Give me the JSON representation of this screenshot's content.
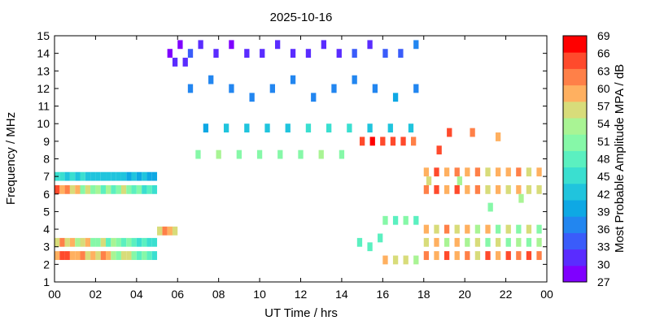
{
  "chart_data": {
    "type": "heatmap",
    "title": "2025-10-16",
    "xlabel": "UT Time / hrs",
    "ylabel": "Frequency / MHz",
    "colorbar_label": "Most Probable Amplitude MPA / dB",
    "xlim": [
      0,
      24
    ],
    "ylim": [
      1,
      15
    ],
    "x_ticks": [
      "00",
      "02",
      "04",
      "06",
      "08",
      "10",
      "12",
      "14",
      "16",
      "18",
      "20",
      "22",
      "00"
    ],
    "y_ticks": [
      "1",
      "2",
      "3",
      "4",
      "5",
      "6",
      "7",
      "8",
      "9",
      "10",
      "11",
      "12",
      "13",
      "14",
      "15"
    ],
    "colorbar_ticks": [
      "27",
      "30",
      "33",
      "36",
      "39",
      "42",
      "45",
      "48",
      "51",
      "54",
      "57",
      "60",
      "63",
      "66",
      "69"
    ],
    "colorbar_range": [
      27,
      69
    ],
    "colormap": [
      "#7f00ff",
      "#5a2cff",
      "#3a5cfa",
      "#2286f0",
      "#0ea8e4",
      "#20c4dd",
      "#3adfd0",
      "#5bf0c0",
      "#86f8a8",
      "#a9f494",
      "#d8dc7a",
      "#ffb060",
      "#ff8048",
      "#ff4a2c",
      "#ff0000"
    ],
    "grid": false,
    "cells": [
      {
        "t": 0.125,
        "f": 2.5,
        "db": 60
      },
      {
        "t": 0.375,
        "f": 2.5,
        "db": 64
      },
      {
        "t": 0.625,
        "f": 2.5,
        "db": 66
      },
      {
        "t": 0.875,
        "f": 2.5,
        "db": 60
      },
      {
        "t": 1.125,
        "f": 2.5,
        "db": 58
      },
      {
        "t": 1.375,
        "f": 2.5,
        "db": 62
      },
      {
        "t": 1.625,
        "f": 2.5,
        "db": 57
      },
      {
        "t": 1.875,
        "f": 2.5,
        "db": 60
      },
      {
        "t": 2.125,
        "f": 2.5,
        "db": 55
      },
      {
        "t": 2.375,
        "f": 2.5,
        "db": 61
      },
      {
        "t": 2.625,
        "f": 2.5,
        "db": 58
      },
      {
        "t": 2.875,
        "f": 2.5,
        "db": 54
      },
      {
        "t": 3.125,
        "f": 2.5,
        "db": 52
      },
      {
        "t": 3.375,
        "f": 2.5,
        "db": 57
      },
      {
        "t": 3.625,
        "f": 2.5,
        "db": 56
      },
      {
        "t": 3.875,
        "f": 2.5,
        "db": 50
      },
      {
        "t": 4.125,
        "f": 2.5,
        "db": 49
      },
      {
        "t": 4.375,
        "f": 2.5,
        "db": 52
      },
      {
        "t": 4.625,
        "f": 2.5,
        "db": 48
      },
      {
        "t": 4.875,
        "f": 2.5,
        "db": 46
      },
      {
        "t": 0.125,
        "f": 3.25,
        "db": 57
      },
      {
        "t": 0.375,
        "f": 3.25,
        "db": 62
      },
      {
        "t": 0.625,
        "f": 3.25,
        "db": 55
      },
      {
        "t": 0.875,
        "f": 3.25,
        "db": 58
      },
      {
        "t": 1.125,
        "f": 3.25,
        "db": 53
      },
      {
        "t": 1.375,
        "f": 3.25,
        "db": 56
      },
      {
        "t": 1.625,
        "f": 3.25,
        "db": 60
      },
      {
        "t": 1.875,
        "f": 3.25,
        "db": 52
      },
      {
        "t": 2.125,
        "f": 3.25,
        "db": 51
      },
      {
        "t": 2.375,
        "f": 3.25,
        "db": 55
      },
      {
        "t": 2.625,
        "f": 3.25,
        "db": 49
      },
      {
        "t": 2.875,
        "f": 3.25,
        "db": 53
      },
      {
        "t": 3.125,
        "f": 3.25,
        "db": 50
      },
      {
        "t": 3.375,
        "f": 3.25,
        "db": 48
      },
      {
        "t": 3.625,
        "f": 3.25,
        "db": 52
      },
      {
        "t": 3.875,
        "f": 3.25,
        "db": 47
      },
      {
        "t": 4.125,
        "f": 3.25,
        "db": 45
      },
      {
        "t": 4.375,
        "f": 3.25,
        "db": 49
      },
      {
        "t": 4.625,
        "f": 3.25,
        "db": 46
      },
      {
        "t": 4.875,
        "f": 3.25,
        "db": 44
      },
      {
        "t": 0.125,
        "f": 6.25,
        "db": 64
      },
      {
        "t": 0.375,
        "f": 6.25,
        "db": 58
      },
      {
        "t": 0.625,
        "f": 6.25,
        "db": 62
      },
      {
        "t": 0.875,
        "f": 6.25,
        "db": 55
      },
      {
        "t": 1.125,
        "f": 6.25,
        "db": 60
      },
      {
        "t": 1.375,
        "f": 6.25,
        "db": 52
      },
      {
        "t": 1.625,
        "f": 6.25,
        "db": 56
      },
      {
        "t": 1.875,
        "f": 6.25,
        "db": 50
      },
      {
        "t": 2.125,
        "f": 6.25,
        "db": 54
      },
      {
        "t": 2.375,
        "f": 6.25,
        "db": 49
      },
      {
        "t": 2.625,
        "f": 6.25,
        "db": 53
      },
      {
        "t": 2.875,
        "f": 6.25,
        "db": 48
      },
      {
        "t": 3.125,
        "f": 6.25,
        "db": 51
      },
      {
        "t": 3.375,
        "f": 6.25,
        "db": 56
      },
      {
        "t": 3.625,
        "f": 6.25,
        "db": 50
      },
      {
        "t": 3.875,
        "f": 6.25,
        "db": 47
      },
      {
        "t": 4.125,
        "f": 6.25,
        "db": 52
      },
      {
        "t": 4.375,
        "f": 6.25,
        "db": 45
      },
      {
        "t": 4.625,
        "f": 6.25,
        "db": 48
      },
      {
        "t": 4.875,
        "f": 6.25,
        "db": 44
      },
      {
        "t": 0.125,
        "f": 7.0,
        "db": 45
      },
      {
        "t": 0.375,
        "f": 7.0,
        "db": 44
      },
      {
        "t": 0.625,
        "f": 7.0,
        "db": 43
      },
      {
        "t": 0.875,
        "f": 7.0,
        "db": 45
      },
      {
        "t": 1.125,
        "f": 7.0,
        "db": 42
      },
      {
        "t": 1.375,
        "f": 7.0,
        "db": 44
      },
      {
        "t": 1.625,
        "f": 7.0,
        "db": 42
      },
      {
        "t": 1.875,
        "f": 7.0,
        "db": 43
      },
      {
        "t": 2.125,
        "f": 7.0,
        "db": 42
      },
      {
        "t": 2.375,
        "f": 7.0,
        "db": 41
      },
      {
        "t": 2.625,
        "f": 7.0,
        "db": 43
      },
      {
        "t": 2.875,
        "f": 7.0,
        "db": 42
      },
      {
        "t": 3.125,
        "f": 7.0,
        "db": 41
      },
      {
        "t": 3.375,
        "f": 7.0,
        "db": 42
      },
      {
        "t": 3.625,
        "f": 7.0,
        "db": 40
      },
      {
        "t": 3.875,
        "f": 7.0,
        "db": 41
      },
      {
        "t": 4.125,
        "f": 7.0,
        "db": 40
      },
      {
        "t": 4.375,
        "f": 7.0,
        "db": 41
      },
      {
        "t": 4.625,
        "f": 7.0,
        "db": 39
      },
      {
        "t": 4.875,
        "f": 7.0,
        "db": 40
      },
      {
        "t": 5.375,
        "f": 3.9,
        "db": 62
      },
      {
        "t": 5.625,
        "f": 3.9,
        "db": 60
      },
      {
        "t": 5.875,
        "f": 3.9,
        "db": 57
      },
      {
        "t": 5.125,
        "f": 3.9,
        "db": 55
      },
      {
        "t": 6.625,
        "f": 14.0,
        "db": 33
      },
      {
        "t": 7.125,
        "f": 14.5,
        "db": 30
      },
      {
        "t": 7.875,
        "f": 14.0,
        "db": 31
      },
      {
        "t": 8.625,
        "f": 14.5,
        "db": 29
      },
      {
        "t": 9.375,
        "f": 14.0,
        "db": 30
      },
      {
        "t": 10.125,
        "f": 14.0,
        "db": 31
      },
      {
        "t": 10.875,
        "f": 14.5,
        "db": 30
      },
      {
        "t": 11.625,
        "f": 14.0,
        "db": 32
      },
      {
        "t": 12.375,
        "f": 14.0,
        "db": 31
      },
      {
        "t": 13.125,
        "f": 14.5,
        "db": 30
      },
      {
        "t": 13.875,
        "f": 14.0,
        "db": 32
      },
      {
        "t": 14.625,
        "f": 14.0,
        "db": 33
      },
      {
        "t": 15.375,
        "f": 14.5,
        "db": 32
      },
      {
        "t": 16.125,
        "f": 14.0,
        "db": 34
      },
      {
        "t": 16.875,
        "f": 14.0,
        "db": 35
      },
      {
        "t": 17.625,
        "f": 14.5,
        "db": 36
      },
      {
        "t": 5.625,
        "f": 14.0,
        "db": 28
      },
      {
        "t": 5.875,
        "f": 13.5,
        "db": 31
      },
      {
        "t": 6.125,
        "f": 14.5,
        "db": 29
      },
      {
        "t": 6.375,
        "f": 13.5,
        "db": 32
      },
      {
        "t": 6.625,
        "f": 12.0,
        "db": 37
      },
      {
        "t": 7.625,
        "f": 12.5,
        "db": 37
      },
      {
        "t": 8.625,
        "f": 12.0,
        "db": 36
      },
      {
        "t": 9.625,
        "f": 11.5,
        "db": 38
      },
      {
        "t": 10.625,
        "f": 12.0,
        "db": 37
      },
      {
        "t": 11.625,
        "f": 12.5,
        "db": 36
      },
      {
        "t": 12.625,
        "f": 11.5,
        "db": 38
      },
      {
        "t": 13.625,
        "f": 12.0,
        "db": 37
      },
      {
        "t": 14.625,
        "f": 12.5,
        "db": 36
      },
      {
        "t": 15.625,
        "f": 12.0,
        "db": 38
      },
      {
        "t": 16.625,
        "f": 11.5,
        "db": 39
      },
      {
        "t": 17.625,
        "f": 12.0,
        "db": 38
      },
      {
        "t": 7.375,
        "f": 9.75,
        "db": 40
      },
      {
        "t": 8.375,
        "f": 9.75,
        "db": 41
      },
      {
        "t": 9.375,
        "f": 9.75,
        "db": 41
      },
      {
        "t": 10.375,
        "f": 9.75,
        "db": 42
      },
      {
        "t": 11.375,
        "f": 9.75,
        "db": 43
      },
      {
        "t": 12.375,
        "f": 9.75,
        "db": 44
      },
      {
        "t": 13.375,
        "f": 9.75,
        "db": 45
      },
      {
        "t": 14.375,
        "f": 9.75,
        "db": 44
      },
      {
        "t": 15.375,
        "f": 9.75,
        "db": 43
      },
      {
        "t": 16.375,
        "f": 9.75,
        "db": 42
      },
      {
        "t": 17.375,
        "f": 9.75,
        "db": 42
      },
      {
        "t": 7.0,
        "f": 8.25,
        "db": 52
      },
      {
        "t": 8.0,
        "f": 8.25,
        "db": 53
      },
      {
        "t": 9.0,
        "f": 8.25,
        "db": 51
      },
      {
        "t": 10.0,
        "f": 8.25,
        "db": 50
      },
      {
        "t": 11.0,
        "f": 8.25,
        "db": 52
      },
      {
        "t": 12.0,
        "f": 8.25,
        "db": 51
      },
      {
        "t": 13.0,
        "f": 8.25,
        "db": 53
      },
      {
        "t": 14.0,
        "f": 8.25,
        "db": 52
      },
      {
        "t": 15.0,
        "f": 9.0,
        "db": 66
      },
      {
        "t": 15.5,
        "f": 9.0,
        "db": 67
      },
      {
        "t": 16.0,
        "f": 9.0,
        "db": 65
      },
      {
        "t": 16.5,
        "f": 9.0,
        "db": 66
      },
      {
        "t": 17.0,
        "f": 9.0,
        "db": 64
      },
      {
        "t": 17.5,
        "f": 9.0,
        "db": 63
      },
      {
        "t": 18.125,
        "f": 7.25,
        "db": 60
      },
      {
        "t": 18.625,
        "f": 7.25,
        "db": 66
      },
      {
        "t": 19.125,
        "f": 7.25,
        "db": 60
      },
      {
        "t": 19.625,
        "f": 7.25,
        "db": 62
      },
      {
        "t": 20.125,
        "f": 7.25,
        "db": 58
      },
      {
        "t": 20.625,
        "f": 7.25,
        "db": 61
      },
      {
        "t": 21.125,
        "f": 7.25,
        "db": 57
      },
      {
        "t": 21.625,
        "f": 7.25,
        "db": 60
      },
      {
        "t": 22.125,
        "f": 7.25,
        "db": 59
      },
      {
        "t": 22.625,
        "f": 7.25,
        "db": 62
      },
      {
        "t": 23.125,
        "f": 7.25,
        "db": 56
      },
      {
        "t": 23.625,
        "f": 7.25,
        "db": 58
      },
      {
        "t": 18.125,
        "f": 6.25,
        "db": 62
      },
      {
        "t": 18.625,
        "f": 6.25,
        "db": 64
      },
      {
        "t": 19.125,
        "f": 6.25,
        "db": 60
      },
      {
        "t": 19.625,
        "f": 6.25,
        "db": 65
      },
      {
        "t": 20.125,
        "f": 6.25,
        "db": 58
      },
      {
        "t": 20.625,
        "f": 6.25,
        "db": 63
      },
      {
        "t": 21.125,
        "f": 6.25,
        "db": 57
      },
      {
        "t": 21.625,
        "f": 6.25,
        "db": 60
      },
      {
        "t": 22.125,
        "f": 6.25,
        "db": 56
      },
      {
        "t": 22.625,
        "f": 6.25,
        "db": 59
      },
      {
        "t": 23.125,
        "f": 6.25,
        "db": 55
      },
      {
        "t": 23.625,
        "f": 6.25,
        "db": 57
      },
      {
        "t": 18.125,
        "f": 4.0,
        "db": 58
      },
      {
        "t": 18.625,
        "f": 4.0,
        "db": 55
      },
      {
        "t": 19.125,
        "f": 4.0,
        "db": 62
      },
      {
        "t": 19.625,
        "f": 4.0,
        "db": 57
      },
      {
        "t": 20.125,
        "f": 4.0,
        "db": 60
      },
      {
        "t": 20.625,
        "f": 4.0,
        "db": 54
      },
      {
        "t": 21.125,
        "f": 4.0,
        "db": 58
      },
      {
        "t": 21.625,
        "f": 4.0,
        "db": 52
      },
      {
        "t": 22.125,
        "f": 4.0,
        "db": 56
      },
      {
        "t": 22.625,
        "f": 4.0,
        "db": 51
      },
      {
        "t": 23.125,
        "f": 4.0,
        "db": 55
      },
      {
        "t": 23.625,
        "f": 4.0,
        "db": 50
      },
      {
        "t": 18.125,
        "f": 2.5,
        "db": 63
      },
      {
        "t": 18.625,
        "f": 2.5,
        "db": 60
      },
      {
        "t": 19.125,
        "f": 2.5,
        "db": 66
      },
      {
        "t": 19.625,
        "f": 2.5,
        "db": 58
      },
      {
        "t": 20.125,
        "f": 2.5,
        "db": 62
      },
      {
        "t": 20.625,
        "f": 2.5,
        "db": 57
      },
      {
        "t": 21.125,
        "f": 2.5,
        "db": 64
      },
      {
        "t": 21.625,
        "f": 2.5,
        "db": 60
      },
      {
        "t": 22.125,
        "f": 2.5,
        "db": 66
      },
      {
        "t": 22.625,
        "f": 2.5,
        "db": 61
      },
      {
        "t": 23.125,
        "f": 2.5,
        "db": 64
      },
      {
        "t": 23.625,
        "f": 2.5,
        "db": 62
      },
      {
        "t": 18.125,
        "f": 3.25,
        "db": 56
      },
      {
        "t": 18.625,
        "f": 3.25,
        "db": 59
      },
      {
        "t": 19.125,
        "f": 3.25,
        "db": 54
      },
      {
        "t": 19.625,
        "f": 3.25,
        "db": 58
      },
      {
        "t": 20.125,
        "f": 3.25,
        "db": 53
      },
      {
        "t": 20.625,
        "f": 3.25,
        "db": 57
      },
      {
        "t": 21.125,
        "f": 3.25,
        "db": 52
      },
      {
        "t": 21.625,
        "f": 3.25,
        "db": 55
      },
      {
        "t": 22.125,
        "f": 3.25,
        "db": 51
      },
      {
        "t": 22.625,
        "f": 3.25,
        "db": 54
      },
      {
        "t": 23.125,
        "f": 3.25,
        "db": 50
      },
      {
        "t": 23.625,
        "f": 3.25,
        "db": 53
      },
      {
        "t": 16.125,
        "f": 2.25,
        "db": 58
      },
      {
        "t": 16.625,
        "f": 2.25,
        "db": 55
      },
      {
        "t": 17.125,
        "f": 2.25,
        "db": 57
      },
      {
        "t": 17.625,
        "f": 2.25,
        "db": 54
      },
      {
        "t": 16.125,
        "f": 4.5,
        "db": 50
      },
      {
        "t": 16.625,
        "f": 4.5,
        "db": 48
      },
      {
        "t": 17.125,
        "f": 4.5,
        "db": 52
      },
      {
        "t": 17.625,
        "f": 4.5,
        "db": 49
      },
      {
        "t": 14.875,
        "f": 3.25,
        "db": 47
      },
      {
        "t": 15.375,
        "f": 3.0,
        "db": 49
      },
      {
        "t": 15.875,
        "f": 3.5,
        "db": 48
      },
      {
        "t": 18.75,
        "f": 8.5,
        "db": 64
      },
      {
        "t": 19.25,
        "f": 9.5,
        "db": 65
      },
      {
        "t": 20.375,
        "f": 9.5,
        "db": 62
      },
      {
        "t": 21.625,
        "f": 9.25,
        "db": 58
      },
      {
        "t": 18.25,
        "f": 6.75,
        "db": 56
      },
      {
        "t": 19.75,
        "f": 6.75,
        "db": 54
      },
      {
        "t": 21.25,
        "f": 5.25,
        "db": 52
      },
      {
        "t": 22.75,
        "f": 5.75,
        "db": 53
      }
    ]
  }
}
